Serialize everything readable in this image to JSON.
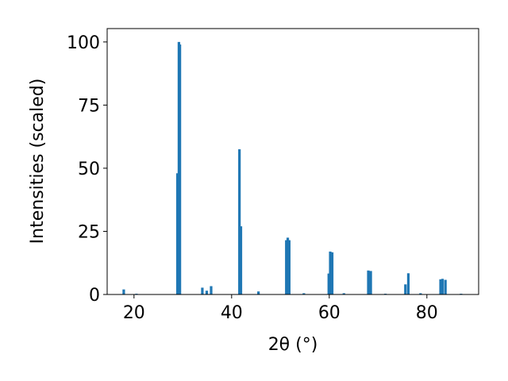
{
  "chart_data": {
    "type": "bar",
    "x_label": "2θ (°)",
    "y_label": "Intensities (scaled)",
    "x": [
      17.9,
      20.5,
      28.9,
      29.2,
      29.4,
      34.0,
      34.9,
      35.8,
      41.6,
      41.9,
      45.5,
      51.2,
      51.5,
      51.8,
      54.8,
      59.9,
      60.2,
      60.6,
      63.0,
      68.0,
      68.5,
      71.5,
      75.6,
      76.2,
      78.7,
      82.8,
      83.2,
      83.8,
      87.0
    ],
    "values": [
      2,
      0.3,
      48,
      100,
      99,
      2.7,
      1.5,
      3.3,
      57.5,
      27,
      1.2,
      21.5,
      22.5,
      21.5,
      0.5,
      8.3,
      17,
      16.7,
      0.5,
      9.5,
      9.3,
      0.3,
      4,
      8.4,
      0.5,
      6,
      6.2,
      5.8,
      0.3
    ],
    "color": "#1f77b4",
    "xlim": [
      14.5,
      90.6
    ],
    "ylim": [
      0,
      105.3
    ],
    "xticks": [
      20,
      40,
      60,
      80
    ],
    "yticks": [
      0,
      25,
      50,
      75,
      100
    ]
  }
}
